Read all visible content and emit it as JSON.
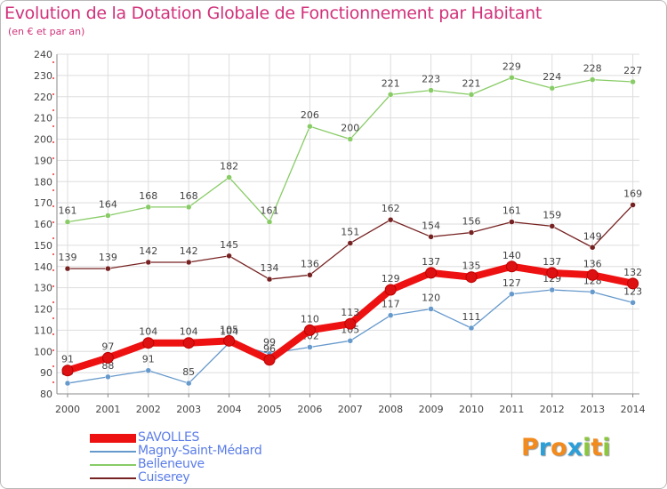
{
  "header": {
    "title": "Evolution de la Dotation Globale de Fonctionnement par Habitant",
    "subtitle": "(en € et par an)"
  },
  "logo": {
    "text": "Proxiti",
    "letters": [
      {
        "char": "P",
        "color": "#f28a1c"
      },
      {
        "char": "r",
        "color": "#2d9fd8"
      },
      {
        "char": "o",
        "color": "#f28a1c"
      },
      {
        "char": "x",
        "color": "#2d9fd8"
      },
      {
        "char": "i",
        "color": "#8cc63f"
      },
      {
        "char": "t",
        "color": "#f28a1c"
      },
      {
        "char": "i",
        "color": "#8cc63f"
      }
    ]
  },
  "chart_data": {
    "type": "line",
    "title": "Evolution de la Dotation Globale de Fonctionnement par Habitant",
    "subtitle": "(en € et par an)",
    "xlabel": "",
    "ylabel": "",
    "x": [
      "2000",
      "2001",
      "2002",
      "2003",
      "2004",
      "2005",
      "2006",
      "2007",
      "2008",
      "2009",
      "2010",
      "2011",
      "2012",
      "2013",
      "2014"
    ],
    "ylim": [
      80,
      240
    ],
    "yticks": [
      80,
      90,
      100,
      110,
      120,
      130,
      140,
      150,
      160,
      170,
      180,
      190,
      200,
      210,
      220,
      230,
      240
    ],
    "grid": true,
    "legend_position": "bottom-left",
    "series": [
      {
        "name": "SAVOLLES",
        "color": "#ee1111",
        "emphasis": true,
        "values": [
          91,
          97,
          104,
          104,
          105,
          96,
          110,
          113,
          129,
          137,
          135,
          140,
          137,
          136,
          132
        ]
      },
      {
        "name": "Magny-Saint-Médard",
        "color": "#6699cc",
        "emphasis": false,
        "values": [
          85,
          88,
          91,
          85,
          104,
          99,
          102,
          105,
          117,
          120,
          111,
          127,
          129,
          128,
          123
        ]
      },
      {
        "name": "Belleneuve",
        "color": "#88cc66",
        "emphasis": false,
        "values": [
          161,
          164,
          168,
          168,
          182,
          161,
          206,
          200,
          221,
          223,
          221,
          229,
          224,
          228,
          227
        ]
      },
      {
        "name": "Cuiserey",
        "color": "#772222",
        "emphasis": false,
        "values": [
          139,
          139,
          142,
          142,
          145,
          134,
          136,
          151,
          162,
          154,
          156,
          161,
          159,
          149,
          169
        ]
      }
    ]
  }
}
